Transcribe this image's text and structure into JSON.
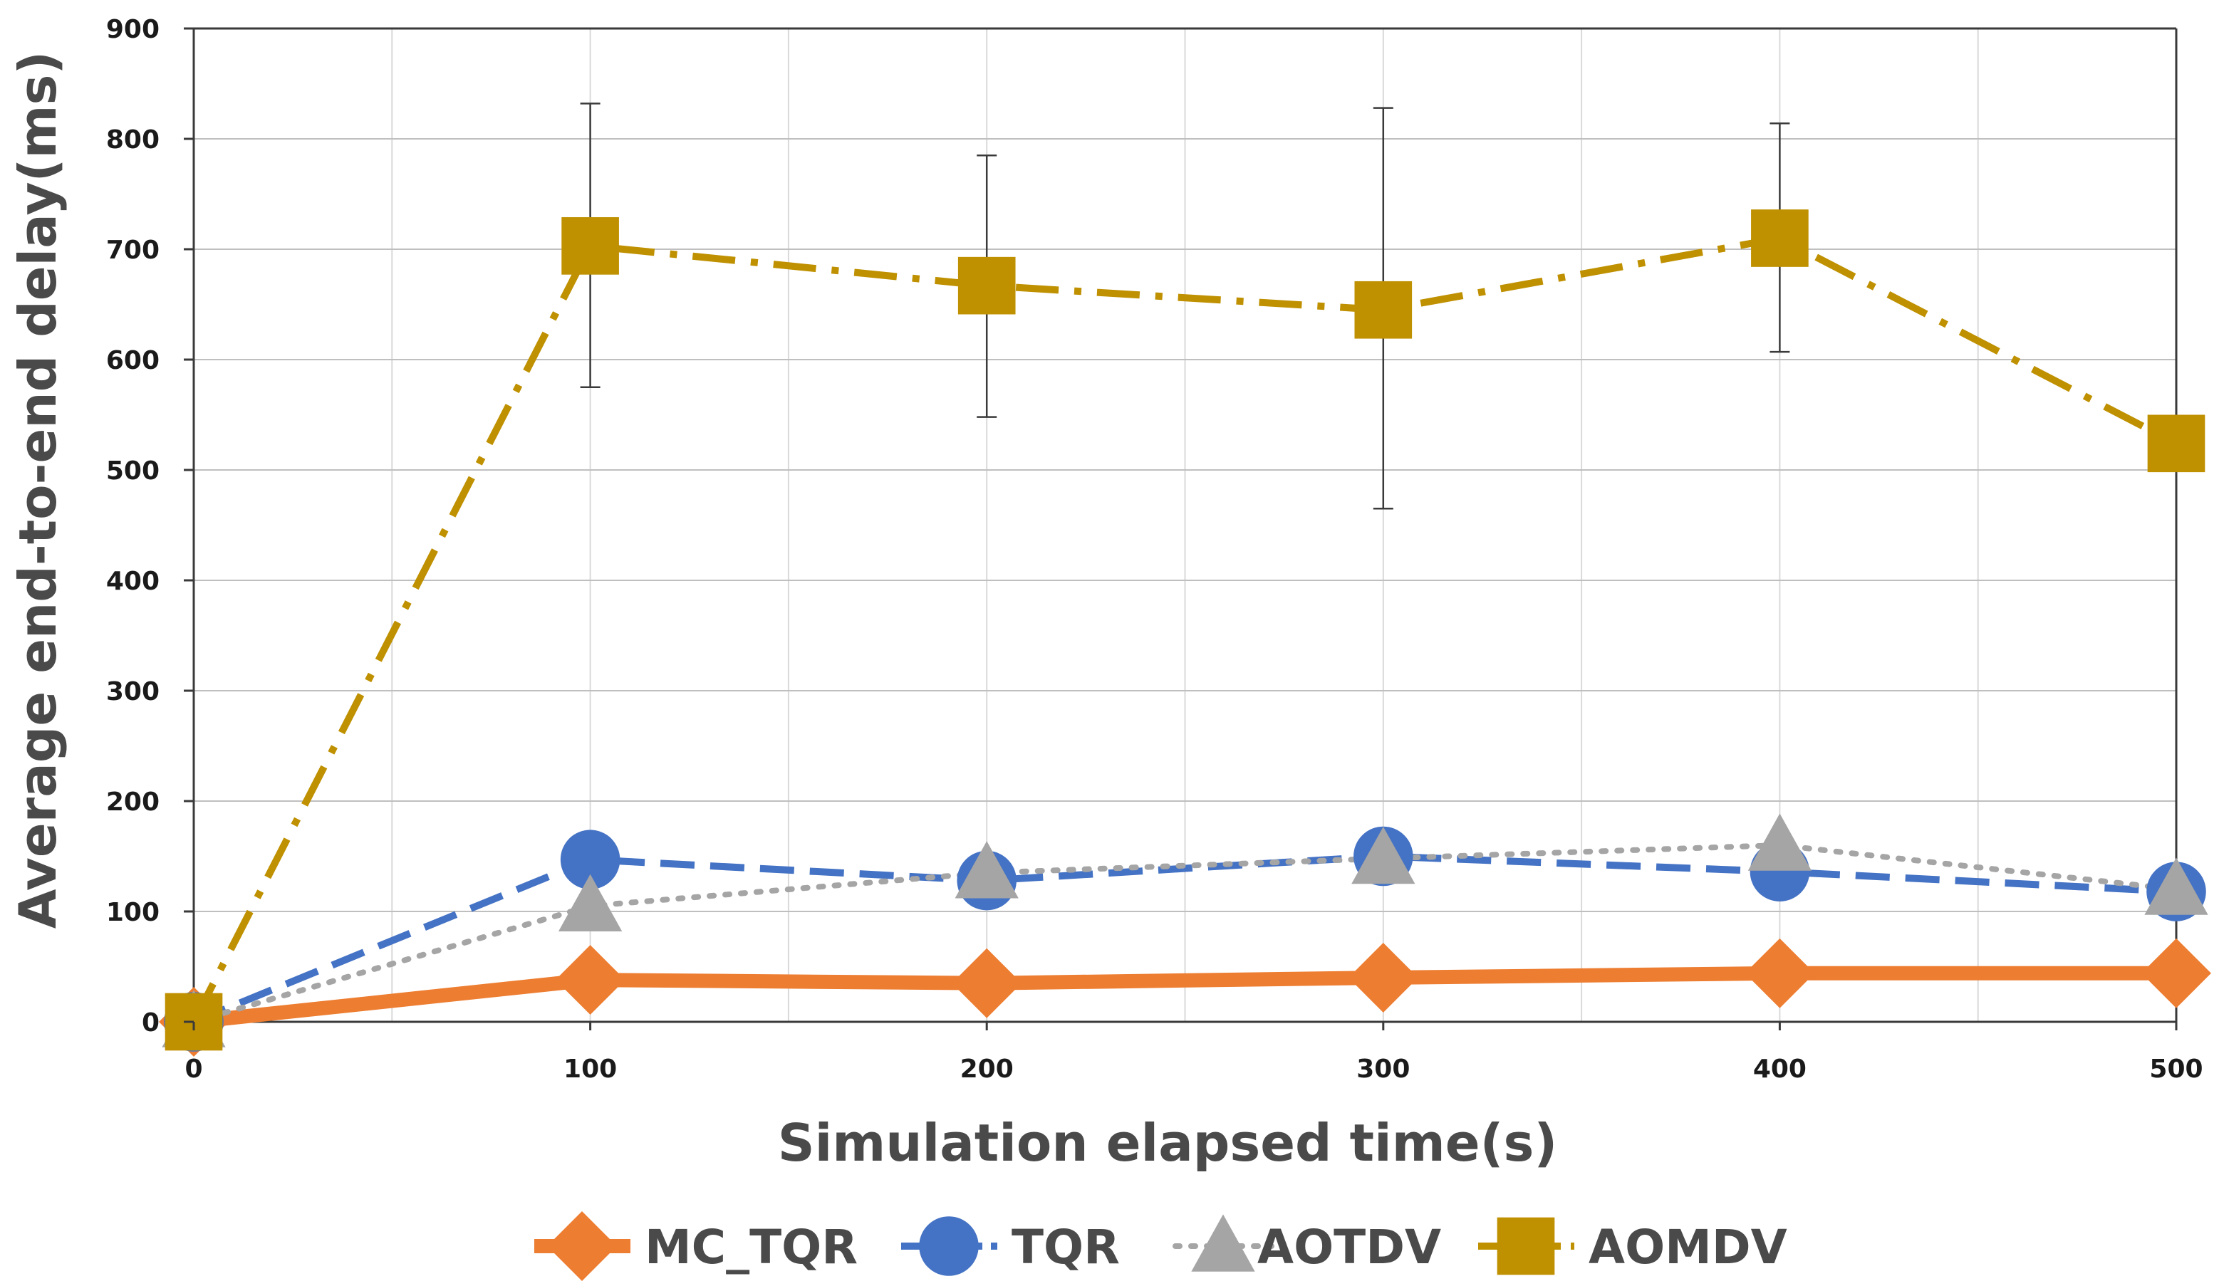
{
  "chart_data": {
    "type": "line",
    "xlabel": "Simulation elapsed time(s)",
    "ylabel": "Average end-to-end delay(ms)",
    "xlim": [
      0,
      500
    ],
    "ylim": [
      0,
      900
    ],
    "x_ticks": [
      0,
      100,
      200,
      300,
      400,
      500
    ],
    "y_ticks": [
      0,
      100,
      200,
      300,
      400,
      500,
      600,
      700,
      800,
      900
    ],
    "grid": true,
    "legend_position": "bottom",
    "x": [
      0,
      100,
      200,
      300,
      400,
      500
    ],
    "series": [
      {
        "name": "MC_TQR",
        "values": [
          0,
          38,
          35,
          40,
          44,
          44
        ],
        "color": "#ED7D31",
        "marker": "diamond",
        "line_style": "solid"
      },
      {
        "name": "TQR",
        "values": [
          0,
          147,
          128,
          150,
          136,
          118
        ],
        "color": "#4472C4",
        "marker": "circle",
        "line_style": "dashed"
      },
      {
        "name": "AOTDV",
        "values": [
          0,
          105,
          135,
          148,
          160,
          120
        ],
        "color": "#A5A5A5",
        "marker": "triangle",
        "line_style": "dotted"
      },
      {
        "name": "AOMDV",
        "values": [
          0,
          703,
          667,
          645,
          710,
          524
        ],
        "color": "#BF9000",
        "marker": "square",
        "line_style": "dash-dot",
        "error_bars": [
          {
            "x": 100,
            "low": 575,
            "high": 832
          },
          {
            "x": 200,
            "low": 548,
            "high": 785
          },
          {
            "x": 300,
            "low": 465,
            "high": 828
          },
          {
            "x": 400,
            "low": 607,
            "high": 814
          }
        ]
      }
    ]
  }
}
